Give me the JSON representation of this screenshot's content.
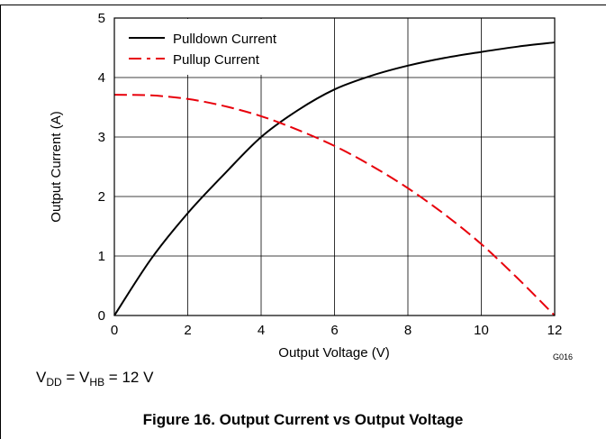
{
  "chart_data": {
    "type": "line",
    "title": "",
    "xlabel": "Output Voltage (V)",
    "ylabel": "Output Current (A)",
    "xlim": [
      0,
      12
    ],
    "ylim": [
      0,
      5
    ],
    "xticks": [
      0,
      2,
      4,
      6,
      8,
      10,
      12
    ],
    "yticks": [
      0,
      1,
      2,
      3,
      4,
      5
    ],
    "grid": true,
    "legend_position": "top-left",
    "series": [
      {
        "name": "Pulldown Current",
        "style": "solid",
        "color": "#000000",
        "x": [
          0,
          1,
          2,
          3,
          4,
          5,
          6,
          7,
          8,
          9,
          10,
          11,
          12
        ],
        "y": [
          0,
          0.95,
          1.72,
          2.38,
          3.0,
          3.45,
          3.8,
          4.03,
          4.2,
          4.33,
          4.43,
          4.52,
          4.59
        ]
      },
      {
        "name": "Pullup Current",
        "style": "dashed",
        "color": "#e8000b",
        "x": [
          0,
          1,
          2,
          3,
          4,
          5,
          6,
          7,
          8,
          9,
          10,
          11,
          12
        ],
        "y": [
          3.71,
          3.7,
          3.64,
          3.52,
          3.35,
          3.12,
          2.85,
          2.52,
          2.14,
          1.7,
          1.2,
          0.62,
          0
        ]
      }
    ],
    "annotations": [
      "G016"
    ]
  },
  "notes": {
    "vdd_prefix": "V",
    "vdd_sub1": "DD",
    "vdd_mid": " = V",
    "vdd_sub2": "HB",
    "vdd_suffix": " = 12 V"
  },
  "caption": "Figure 16. Output Current vs Output Voltage"
}
